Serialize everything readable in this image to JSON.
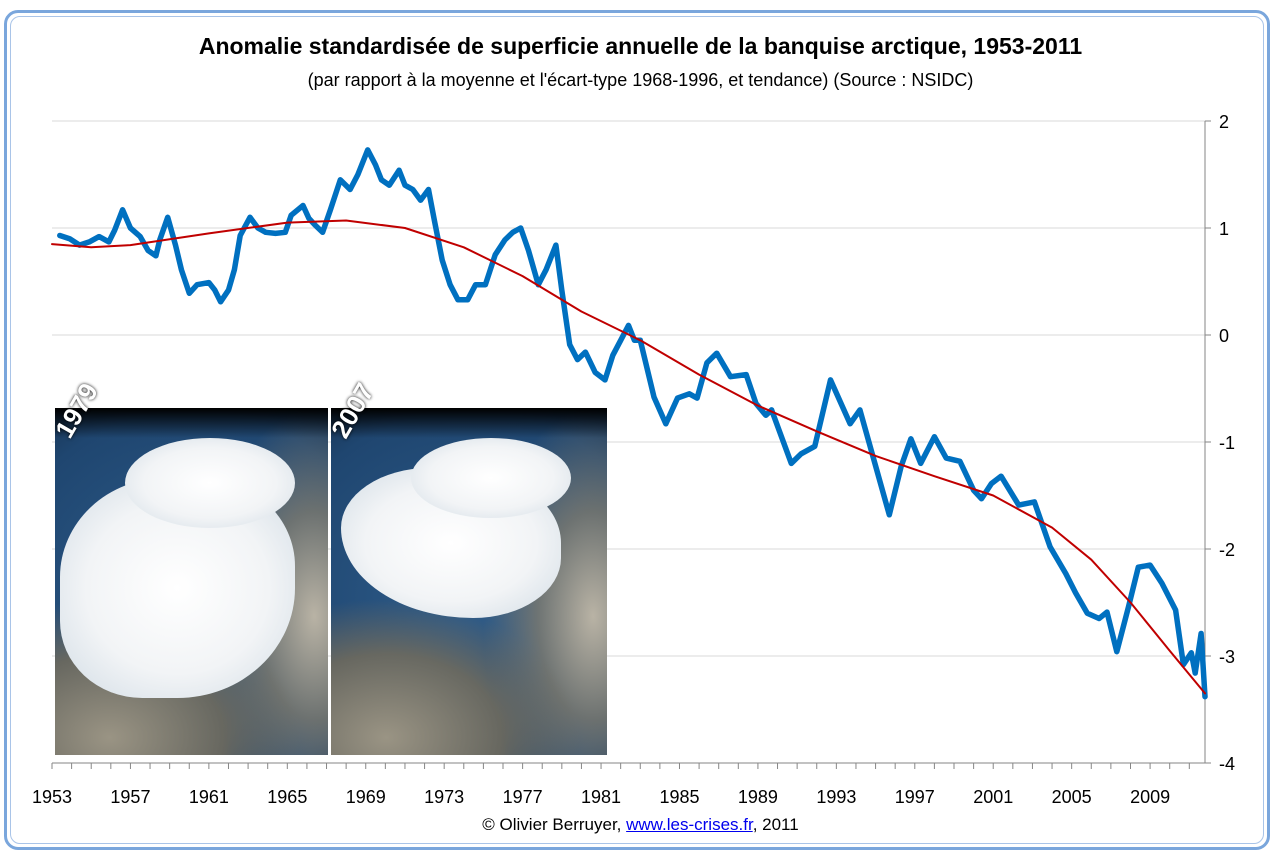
{
  "chart_data": {
    "type": "line",
    "title": "Anomalie standardisée de superficie annuelle de la banquise arctique, 1953-2011",
    "subtitle": "(par rapport à la moyenne et l'écart-type 1968-1996,  et tendance) (Source : NSIDC)",
    "xlabel": "",
    "ylabel": "",
    "xlim": [
      1953,
      2011.8
    ],
    "ylim": [
      -4,
      2
    ],
    "grid": true,
    "legend": "none",
    "x_ticks": [
      "1953",
      "1957",
      "1961",
      "1965",
      "1969",
      "1973",
      "1977",
      "1981",
      "1985",
      "1989",
      "1993",
      "1997",
      "2001",
      "2005",
      "2009"
    ],
    "y_ticks": [
      "2",
      "1",
      "0",
      "-1",
      "-2",
      "-3",
      "-4"
    ],
    "y_axis_side": "right",
    "series": [
      {
        "color": "#0070c0",
        "x": [
          1953.4,
          1953.9,
          1954.4,
          1954.9,
          1955.4,
          1955.9,
          1956.2,
          1956.6,
          1957.0,
          1957.5,
          1957.9,
          1958.3,
          1958.5,
          1958.9,
          1959.3,
          1959.6,
          1960.0,
          1960.4,
          1961.0,
          1961.3,
          1961.6,
          1962.0,
          1962.3,
          1962.6,
          1963.1,
          1963.5,
          1963.9,
          1964.4,
          1964.9,
          1965.2,
          1965.8,
          1966.1,
          1966.4,
          1966.8,
          1967.2,
          1967.7,
          1968.2,
          1968.6,
          1969.1,
          1969.5,
          1969.8,
          1970.2,
          1970.7,
          1971.0,
          1971.4,
          1971.8,
          1972.2,
          1972.5,
          1972.9,
          1973.3,
          1973.7,
          1974.2,
          1974.6,
          1975.1,
          1975.6,
          1976.1,
          1976.5,
          1976.9,
          1977.3,
          1977.8,
          1978.2,
          1978.7,
          1979.0,
          1979.4,
          1979.8,
          1980.2,
          1980.7,
          1981.2,
          1981.6,
          1982.0,
          1982.4,
          1982.7,
          1983.0,
          1983.7,
          1984.3,
          1984.9,
          1985.5,
          1985.9,
          1986.4,
          1986.9,
          1987.6,
          1988.4,
          1988.9,
          1989.4,
          1989.7,
          1990.7,
          1991.2,
          1991.9,
          1992.7,
          1993.7,
          1994.2,
          1995.7,
          1996.3,
          1996.8,
          1997.3,
          1998.0,
          1998.6,
          1999.3,
          2000.0,
          2000.4,
          2000.9,
          2001.4,
          2002.3,
          2003.1,
          2003.9,
          2004.7,
          2005.2,
          2005.8,
          2006.4,
          2006.8,
          2007.3,
          2007.9,
          2008.4,
          2009.0,
          2009.6,
          2010.3,
          2010.7,
          2011.1,
          2011.3,
          2011.6,
          2011.8
        ],
        "values": [
          0.93,
          0.9,
          0.84,
          0.87,
          0.92,
          0.87,
          0.98,
          1.17,
          1.0,
          0.92,
          0.79,
          0.74,
          0.89,
          1.1,
          0.84,
          0.61,
          0.39,
          0.47,
          0.49,
          0.42,
          0.31,
          0.42,
          0.61,
          0.93,
          1.1,
          1.0,
          0.96,
          0.95,
          0.96,
          1.12,
          1.21,
          1.09,
          1.03,
          0.96,
          1.17,
          1.45,
          1.36,
          1.5,
          1.73,
          1.59,
          1.45,
          1.4,
          1.54,
          1.4,
          1.36,
          1.26,
          1.36,
          1.07,
          0.7,
          0.47,
          0.33,
          0.33,
          0.47,
          0.47,
          0.75,
          0.89,
          0.96,
          1.0,
          0.79,
          0.47,
          0.61,
          0.84,
          0.42,
          -0.09,
          -0.23,
          -0.16,
          -0.35,
          -0.42,
          -0.19,
          -0.05,
          0.09,
          -0.05,
          -0.05,
          -0.58,
          -0.83,
          -0.59,
          -0.55,
          -0.59,
          -0.26,
          -0.17,
          -0.39,
          -0.37,
          -0.64,
          -0.75,
          -0.7,
          -1.2,
          -1.11,
          -1.04,
          -0.42,
          -0.83,
          -0.7,
          -1.68,
          -1.23,
          -0.97,
          -1.2,
          -0.95,
          -1.15,
          -1.18,
          -1.45,
          -1.53,
          -1.39,
          -1.32,
          -1.59,
          -1.56,
          -1.98,
          -2.23,
          -2.41,
          -2.6,
          -2.65,
          -2.59,
          -2.96,
          -2.54,
          -2.17,
          -2.15,
          -2.32,
          -2.57,
          -3.08,
          -2.97,
          -3.16,
          -2.79,
          -3.38
        ]
      },
      {
        "color": "#c00000",
        "x": [
          1953,
          1955,
          1957,
          1961,
          1965,
          1968,
          1971,
          1974,
          1977,
          1980,
          1983,
          1986,
          1989,
          1992,
          1995,
          1998,
          2001,
          2004,
          2006,
          2008,
          2010,
          2011.8
        ],
        "values": [
          0.85,
          0.82,
          0.84,
          0.95,
          1.05,
          1.07,
          1.0,
          0.82,
          0.55,
          0.22,
          -0.05,
          -0.37,
          -0.66,
          -0.9,
          -1.13,
          -1.32,
          -1.5,
          -1.8,
          -2.1,
          -2.5,
          -2.95,
          -3.35
        ]
      }
    ]
  },
  "inset": {
    "left_label": "1979",
    "right_label": "2007"
  },
  "footer": {
    "prefix": "© Olivier Berruyer, ",
    "link": "www.les-crises.fr",
    "suffix": ",  2011"
  }
}
